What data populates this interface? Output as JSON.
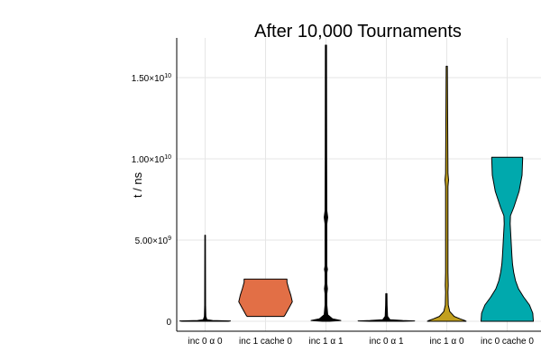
{
  "chart_data": {
    "type": "violin",
    "title": "After 10,000 Tournaments",
    "ylabel": "t / ns",
    "xlabel": "",
    "ylim": [
      -500000000,
      17500000000
    ],
    "grid": true,
    "legend": "none",
    "yticks": [
      {
        "value": 0,
        "mantissa": "0",
        "exp": ""
      },
      {
        "value": 5000000000,
        "mantissa": "5.00×10",
        "exp": "9"
      },
      {
        "value": 10000000000,
        "mantissa": "1.00×10",
        "exp": "10"
      },
      {
        "value": 15000000000,
        "mantissa": "1.50×10",
        "exp": "10"
      }
    ],
    "categories": [
      "inc 0 α 0",
      "inc 1 cache 0",
      "inc 1 α 1",
      "inc 0 α 1",
      "inc 1 α 0",
      "inc 0 cache 0"
    ],
    "series": [
      {
        "color": "#000000",
        "profile": [
          [
            0,
            0.78
          ],
          [
            20000000,
            0.85
          ],
          [
            50000000,
            0.25
          ],
          [
            100000000,
            0.06
          ],
          [
            300000000,
            0.025
          ],
          [
            1000000000,
            0.015
          ],
          [
            5300000000,
            0.01
          ]
        ]
      },
      {
        "color": "#e26f46",
        "profile": [
          [
            300000000,
            0.62
          ],
          [
            400000000,
            0.66
          ],
          [
            800000000,
            0.78
          ],
          [
            1200000000,
            0.9
          ],
          [
            1600000000,
            0.85
          ],
          [
            2000000000,
            0.78
          ],
          [
            2400000000,
            0.72
          ],
          [
            2600000000,
            0.72
          ]
        ]
      },
      {
        "color": "#000000",
        "profile": [
          [
            0,
            0.12
          ],
          [
            50000000,
            0.5
          ],
          [
            150000000,
            0.22
          ],
          [
            400000000,
            0.06
          ],
          [
            1000000000,
            0.03
          ],
          [
            1700000000,
            0.03
          ],
          [
            2000000000,
            0.05
          ],
          [
            2300000000,
            0.03
          ],
          [
            3000000000,
            0.03
          ],
          [
            3200000000,
            0.05
          ],
          [
            3400000000,
            0.03
          ],
          [
            6000000000,
            0.03
          ],
          [
            6400000000,
            0.06
          ],
          [
            6800000000,
            0.03
          ],
          [
            10000000000,
            0.025
          ],
          [
            17000000000,
            0.02
          ]
        ]
      },
      {
        "color": "#000000",
        "profile": [
          [
            0,
            0.55
          ],
          [
            20000000,
            0.95
          ],
          [
            50000000,
            0.55
          ],
          [
            100000000,
            0.12
          ],
          [
            300000000,
            0.04
          ],
          [
            1000000000,
            0.025
          ],
          [
            1700000000,
            0.02
          ]
        ]
      },
      {
        "color": "#c2a01e",
        "profile": [
          [
            0,
            0.65
          ],
          [
            50000000,
            0.6
          ],
          [
            150000000,
            0.45
          ],
          [
            300000000,
            0.25
          ],
          [
            600000000,
            0.1
          ],
          [
            1000000000,
            0.05
          ],
          [
            1800000000,
            0.04
          ],
          [
            2200000000,
            0.05
          ],
          [
            3000000000,
            0.04
          ],
          [
            8300000000,
            0.04
          ],
          [
            8700000000,
            0.06
          ],
          [
            9100000000,
            0.04
          ],
          [
            15700000000,
            0.02
          ]
        ]
      },
      {
        "color": "#00a9ad",
        "profile": [
          [
            0,
            0.88
          ],
          [
            500000000,
            0.86
          ],
          [
            1000000000,
            0.75
          ],
          [
            1500000000,
            0.55
          ],
          [
            2000000000,
            0.38
          ],
          [
            2500000000,
            0.28
          ],
          [
            3000000000,
            0.22
          ],
          [
            3500000000,
            0.18
          ],
          [
            4000000000,
            0.16
          ],
          [
            5000000000,
            0.13
          ],
          [
            6000000000,
            0.1
          ],
          [
            6500000000,
            0.11
          ],
          [
            7000000000,
            0.22
          ],
          [
            8000000000,
            0.4
          ],
          [
            9000000000,
            0.5
          ],
          [
            10000000000,
            0.52
          ],
          [
            10100000000,
            0.52
          ]
        ]
      }
    ]
  }
}
